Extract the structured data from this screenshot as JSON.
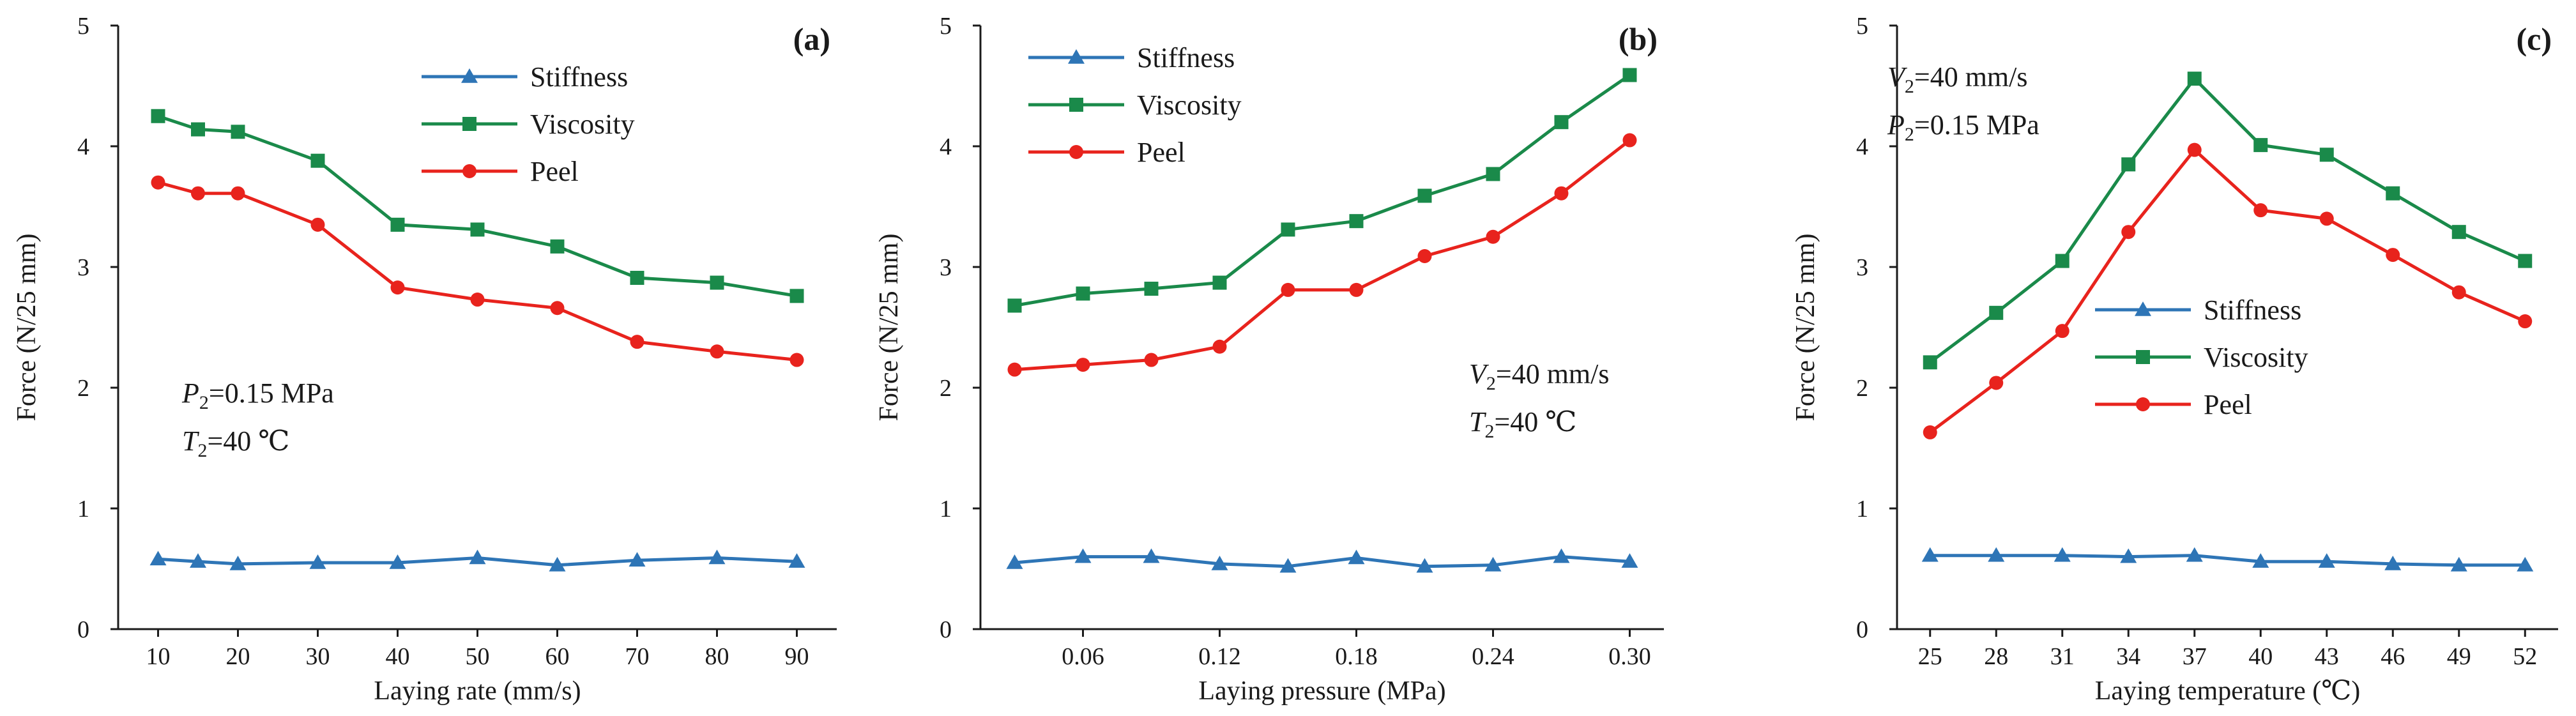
{
  "chart_data": [
    {
      "type": "line",
      "panel_tag": "(a)",
      "xlabel": "Laying rate (mm/s)",
      "ylabel": "Force (N/25 mm)",
      "x": [
        10,
        15,
        20,
        30,
        40,
        50,
        60,
        70,
        80,
        90
      ],
      "xlim": [
        5,
        95
      ],
      "xticks": [
        "10",
        "20",
        "30",
        "40",
        "50",
        "60",
        "70",
        "80",
        "90"
      ],
      "xtick_values": [
        10,
        20,
        30,
        40,
        50,
        60,
        70,
        80,
        90
      ],
      "ylim": [
        0,
        5
      ],
      "yticks": [
        "0",
        "1",
        "2",
        "3",
        "4",
        "5"
      ],
      "series": [
        {
          "name": "Stiffness",
          "color": "#2e75b6",
          "marker": "triangle",
          "values": [
            0.58,
            0.56,
            0.54,
            0.55,
            0.55,
            0.59,
            0.53,
            0.57,
            0.59,
            0.56
          ]
        },
        {
          "name": "Viscosity",
          "color": "#1a8a4a",
          "marker": "square",
          "values": [
            4.25,
            4.14,
            4.12,
            3.88,
            3.35,
            3.31,
            3.17,
            2.91,
            2.87,
            2.76
          ]
        },
        {
          "name": "Peel",
          "color": "#e8231d",
          "marker": "circle",
          "values": [
            3.7,
            3.61,
            3.61,
            3.35,
            2.83,
            2.73,
            2.66,
            2.38,
            2.3,
            2.23
          ]
        }
      ],
      "legend_position": "top-center",
      "annotation": {
        "line1": {
          "var": "P",
          "sub": "2",
          "rest": "=0.15 MPa"
        },
        "line2": {
          "var": "T",
          "sub": "2",
          "rest": "=40 ℃"
        },
        "position": "lower-left"
      }
    },
    {
      "type": "line",
      "panel_tag": "(b)",
      "xlabel": "Laying pressure (MPa)",
      "ylabel": "Force (N/25 mm)",
      "x": [
        0.03,
        0.06,
        0.09,
        0.12,
        0.15,
        0.18,
        0.21,
        0.24,
        0.27,
        0.3
      ],
      "xlim": [
        0.015,
        0.315
      ],
      "xticks": [
        "0.06",
        "0.12",
        "0.18",
        "0.24",
        "0.30"
      ],
      "xtick_values": [
        0.06,
        0.12,
        0.18,
        0.24,
        0.3
      ],
      "ylim": [
        0,
        5
      ],
      "yticks": [
        "0",
        "1",
        "2",
        "3",
        "4",
        "5"
      ],
      "series": [
        {
          "name": "Stiffness",
          "color": "#2e75b6",
          "marker": "triangle",
          "values": [
            0.55,
            0.6,
            0.6,
            0.54,
            0.52,
            0.59,
            0.52,
            0.53,
            0.6,
            0.56
          ]
        },
        {
          "name": "Viscosity",
          "color": "#1a8a4a",
          "marker": "square",
          "values": [
            2.68,
            2.78,
            2.82,
            2.87,
            3.31,
            3.38,
            3.59,
            3.77,
            4.2,
            4.59
          ]
        },
        {
          "name": "Peel",
          "color": "#e8231d",
          "marker": "circle",
          "values": [
            2.15,
            2.19,
            2.23,
            2.34,
            2.81,
            2.81,
            3.09,
            3.25,
            3.61,
            4.05
          ]
        }
      ],
      "legend_position": "top-left",
      "annotation": {
        "line1": {
          "var": "V",
          "sub": "2",
          "rest": "=40 mm/s"
        },
        "line2": {
          "var": "T",
          "sub": "2",
          "rest": "=40 ℃"
        },
        "position": "lower-right"
      }
    },
    {
      "type": "line",
      "panel_tag": "(c)",
      "xlabel": "Laying temperature (℃)",
      "ylabel": "Force (N/25 mm)",
      "x": [
        25,
        28,
        31,
        34,
        37,
        40,
        43,
        46,
        49,
        52
      ],
      "xlim": [
        23.5,
        53.5
      ],
      "xticks": [
        "25",
        "28",
        "31",
        "34",
        "37",
        "40",
        "43",
        "46",
        "49",
        "52"
      ],
      "xtick_values": [
        25,
        28,
        31,
        34,
        37,
        40,
        43,
        46,
        49,
        52
      ],
      "ylim": [
        0,
        5
      ],
      "yticks": [
        "0",
        "1",
        "2",
        "3",
        "4",
        "5"
      ],
      "series": [
        {
          "name": "Stiffness",
          "color": "#2e75b6",
          "marker": "triangle",
          "values": [
            0.61,
            0.61,
            0.61,
            0.6,
            0.61,
            0.56,
            0.56,
            0.54,
            0.53,
            0.53
          ]
        },
        {
          "name": "Viscosity",
          "color": "#1a8a4a",
          "marker": "square",
          "values": [
            2.21,
            2.62,
            3.05,
            3.85,
            4.56,
            4.01,
            3.93,
            3.61,
            3.29,
            3.05
          ]
        },
        {
          "name": "Peel",
          "color": "#e8231d",
          "marker": "circle",
          "values": [
            1.63,
            2.04,
            2.47,
            3.29,
            3.97,
            3.47,
            3.4,
            3.1,
            2.79,
            2.55
          ]
        }
      ],
      "legend_position": "center",
      "annotation": {
        "line1": {
          "var": "V",
          "sub": "2",
          "rest": "=40 mm/s"
        },
        "line2": {
          "var": "P",
          "sub": "2",
          "rest": "=0.15 MPa"
        },
        "position": "top-left"
      }
    }
  ]
}
